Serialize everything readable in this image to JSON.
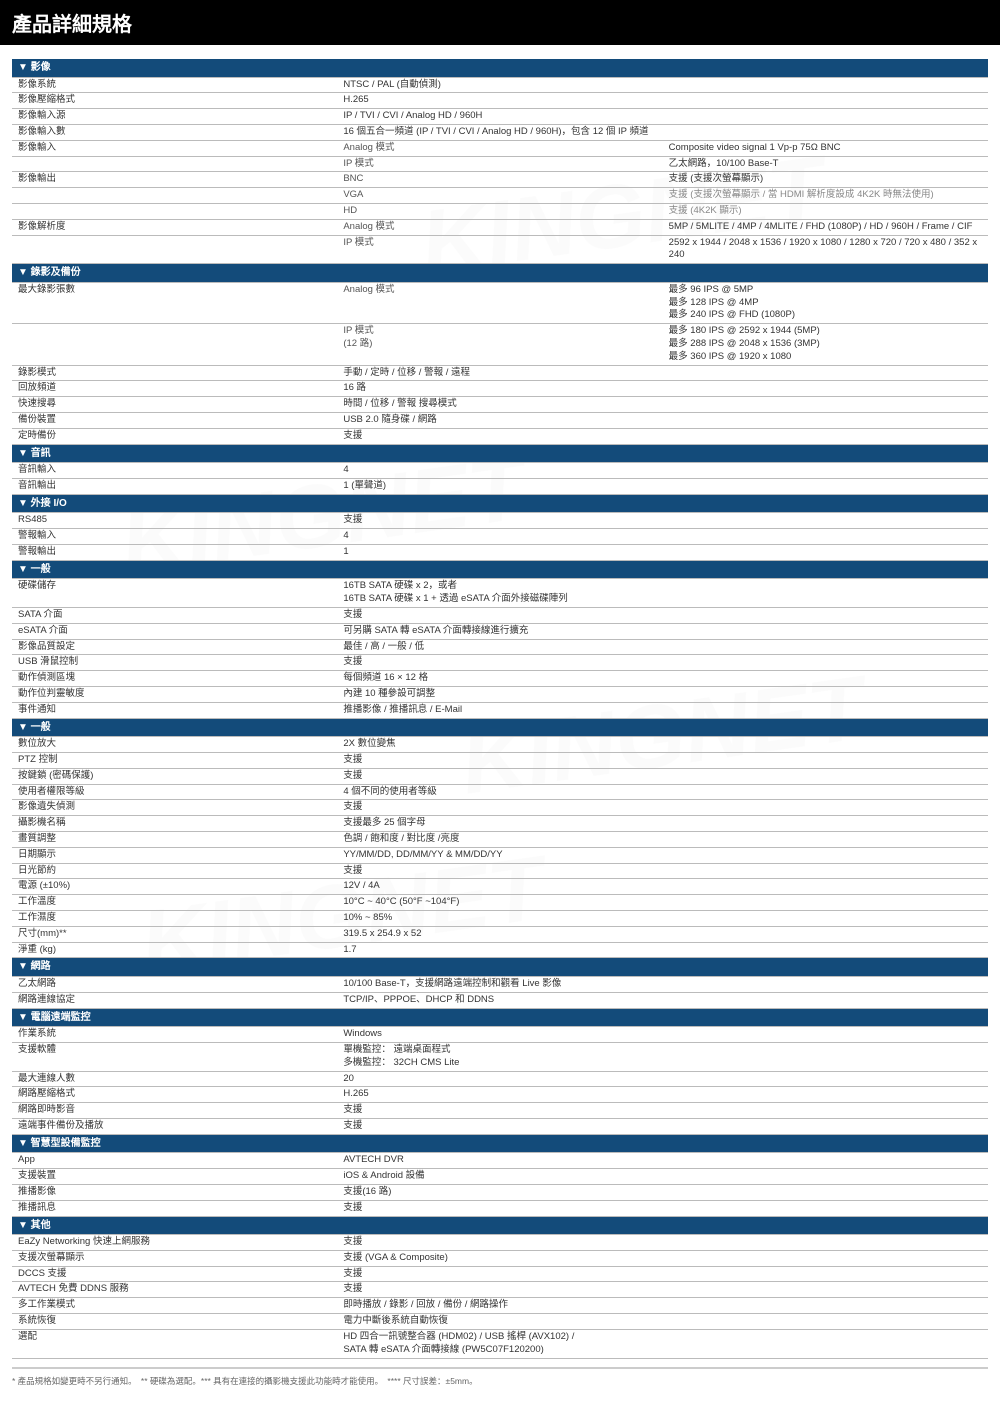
{
  "title": "產品詳細規格",
  "watermark": "KINGNET",
  "footnote": "* 產品規格如變更時不另行通知。　** 硬碟為選配。*** 具有在連接的攝影機支援此功能時才能使用。　**** 尺寸誤差：±5mm。",
  "sections": [
    {
      "name": "▼ 影像",
      "rows": [
        {
          "l": "影像系統",
          "v": "NTSC / PAL (自動偵測)"
        },
        {
          "l": "影像壓縮格式",
          "v": "H.265"
        },
        {
          "l": "影像輸入源",
          "v": "IP / TVI / CVI / Analog HD / 960H"
        },
        {
          "l": "影像輸入數",
          "v": "16 個五合一頻道  (IP / TVI / CVI / Analog HD / 960H)，包含 12 個 IP 頻道"
        },
        {
          "l": "影像輸入",
          "m": "Analog 模式",
          "v": "Composite video signal 1 Vp-p 75Ω BNC"
        },
        {
          "l": "",
          "m": "IP 模式",
          "v": "乙太網路，10/100 Base-T"
        },
        {
          "l": "影像輸出",
          "m": "BNC",
          "v": "支援 (支援次螢幕顯示)"
        },
        {
          "l": "",
          "m": "VGA",
          "v": "支援 (支援次螢幕顯示 / 當 HDMI 解析度設成 4K2K 時無法使用)",
          "gray": true
        },
        {
          "l": "",
          "m": "HD",
          "v": "支援 (4K2K 顯示)",
          "gray": true
        },
        {
          "l": "影像解析度",
          "m": "Analog 模式",
          "v": "5MP / 5MLITE / 4MP / 4MLITE / FHD (1080P) / HD / 960H / Frame / CIF"
        },
        {
          "l": "",
          "m": "IP 模式",
          "v": "2592 x 1944 / 2048 x 1536 / 1920 x 1080 / 1280 x 720 / 720 x 480 / 352 x 240"
        }
      ]
    },
    {
      "name": "▼ 錄影及備份",
      "rows": [
        {
          "l": "最大錄影張數",
          "m": "Analog 模式",
          "v": "最多 96 IPS @ 5MP\n最多 128 IPS @ 4MP\n最多 240 IPS @ FHD (1080P)"
        },
        {
          "l": "",
          "m": "IP 模式\n(12 路)",
          "v": "最多 180 IPS @ 2592 x 1944 (5MP)\n最多 288 IPS @ 2048 x 1536 (3MP)\n最多 360 IPS @ 1920 x 1080"
        },
        {
          "l": "錄影模式",
          "v": "手動 / 定時 / 位移 / 警報 / 遠程"
        },
        {
          "l": "回放頻道",
          "v": "16 路"
        },
        {
          "l": "快速搜尋",
          "v": "時間 / 位移 / 警報  搜尋模式"
        },
        {
          "l": "備份裝置",
          "v": "USB 2.0 隨身碟 / 網路"
        },
        {
          "l": "定時備份",
          "v": "支援"
        }
      ]
    },
    {
      "name": "▼ 音訊",
      "rows": [
        {
          "l": "音訊輸入",
          "v": "4"
        },
        {
          "l": "音訊輸出",
          "v": "1 (單聲道)"
        }
      ]
    },
    {
      "name": "▼ 外接 I/O",
      "rows": [
        {
          "l": "RS485",
          "v": "支援"
        },
        {
          "l": "警報輸入",
          "v": "4"
        },
        {
          "l": "警報輸出",
          "v": "1"
        }
      ]
    },
    {
      "name": "▼ 一般",
      "rows": [
        {
          "l": "硬碟儲存",
          "v": "16TB SATA 硬碟  x 2，或者\n16TB SATA 硬碟  x 1 +  透過 eSATA 介面外接磁碟陣列"
        },
        {
          "l": "SATA 介面",
          "v": "支援"
        },
        {
          "l": "eSATA 介面",
          "v": "可另購 SATA 轉 eSATA 介面轉接線進行擴充"
        },
        {
          "l": "影像品質設定",
          "v": "最佳 / 高 / 一般 / 低"
        },
        {
          "l": "USB 滑鼠控制",
          "v": "支援"
        },
        {
          "l": "動作偵測區塊",
          "v": "每個頻道 16 × 12 格"
        },
        {
          "l": "動作位判靈敏度",
          "v": "內建 10 種參設可調整"
        },
        {
          "l": "事件通知",
          "v": "推播影像 /  推播訊息 / E-Mail"
        }
      ]
    },
    {
      "name": "▼ 一般",
      "rows": [
        {
          "l": "數位放大",
          "v": "2X  數位變焦"
        },
        {
          "l": "PTZ 控制",
          "v": "支援"
        },
        {
          "l": "按鍵鎖 (密碼保護)",
          "v": "支援"
        },
        {
          "l": "使用者權限等級",
          "v": "4 個不同的使用者等級"
        },
        {
          "l": "影像遺失偵測",
          "v": "支援"
        },
        {
          "l": "攝影機名稱",
          "v": "支援最多 25 個字母"
        },
        {
          "l": "畫質調整",
          "v": "色調 / 飽和度 / 對比度 /亮度"
        },
        {
          "l": "日期顯示",
          "v": "YY/MM/DD, DD/MM/YY & MM/DD/YY"
        },
        {
          "l": "日光節約",
          "v": "支援"
        },
        {
          "l": "電源 (±10%)",
          "v": "12V / 4A"
        },
        {
          "l": "工作溫度",
          "v": "10°C ~ 40°C (50°F ~104°F)"
        },
        {
          "l": "工作濕度",
          "v": "10% ~ 85%"
        },
        {
          "l": "尺寸(mm)**",
          "v": "319.5 x 254.9 x 52"
        },
        {
          "l": "淨重 (kg)",
          "v": "1.7"
        }
      ]
    },
    {
      "name": "▼ 網路",
      "rows": [
        {
          "l": "乙太網路",
          "v": "10/100 Base-T，支援網路遠端控制和觀看 Live 影像"
        },
        {
          "l": "網路連線協定",
          "v": "TCP/IP、PPPOE、DHCP 和 DDNS"
        }
      ]
    },
    {
      "name": "▼ 電腦遠端監控",
      "rows": [
        {
          "l": "作業系統",
          "v": "Windows"
        },
        {
          "l": "支援軟體",
          "v": "單機監控：  遠端桌面程式\n多機監控：  32CH CMS Lite"
        },
        {
          "l": "最大連線人數",
          "v": "20"
        },
        {
          "l": "網路壓縮格式",
          "v": "H.265"
        },
        {
          "l": "網路即時影音",
          "v": "支援"
        },
        {
          "l": "遠端事件備份及播放",
          "v": "支援"
        }
      ]
    },
    {
      "name": "▼ 智慧型設備監控",
      "rows": [
        {
          "l": "App",
          "v": "AVTECH DVR"
        },
        {
          "l": "支援裝置",
          "v": "iOS & Android  設備"
        },
        {
          "l": "推播影像",
          "v": "支援(16 路)"
        },
        {
          "l": "推播訊息",
          "v": "支援"
        }
      ]
    },
    {
      "name": "▼ 其他",
      "rows": [
        {
          "l": "EaZy Networking 快速上網服務",
          "v": "支援"
        },
        {
          "l": "支援次螢幕顯示",
          "v": "支援 (VGA & Composite)"
        },
        {
          "l": "DCCS  支援",
          "v": "支援"
        },
        {
          "l": "AVTECH 免費 DDNS 服務",
          "v": "支援"
        },
        {
          "l": "多工作業模式",
          "v": "即時播放 / 錄影 / 回放 / 備份 / 網路操作"
        },
        {
          "l": "系統恢復",
          "v": "電力中斷後系統自動恢復"
        },
        {
          "l": "選配",
          "v": "HD  四合一訊號整合器 (HDM02) / USB 搖桿 (AVX102) /\nSATA 轉 eSATA 介面轉接線  (PW5C07F120200)"
        }
      ]
    }
  ],
  "colors": {
    "header": "#134b7a",
    "title": "#000",
    "border": "#bbb",
    "text": "#333",
    "gray": "#888"
  }
}
